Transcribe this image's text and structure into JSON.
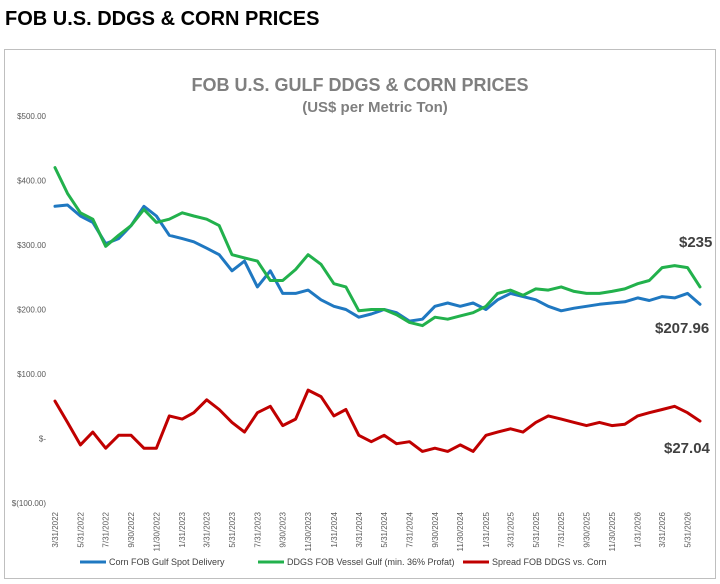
{
  "page_title": "FOB U.S. DDGS & CORN PRICES",
  "chart_data": {
    "type": "line",
    "title": "FOB U.S. GULF DDGS & CORN PRICES",
    "subtitle": "(US$ per Metric Ton)",
    "ylim": [
      -100,
      500
    ],
    "y_ticks": [
      "$500.00",
      "$400.00",
      "$300.00",
      "$200.00",
      "$100.00",
      "$-",
      "$(100.00)"
    ],
    "y_tick_values": [
      500,
      400,
      300,
      200,
      100,
      0,
      -100
    ],
    "x_tick_labels": [
      "3/31/2022",
      "5/31/2022",
      "7/31/2022",
      "9/30/2022",
      "11/30/2022",
      "1/31/2023",
      "3/31/2023",
      "5/31/2023",
      "7/31/2023",
      "9/30/2023",
      "11/30/2023",
      "1/31/2024",
      "3/31/2024",
      "5/31/2024",
      "7/31/2024",
      "9/30/2024",
      "11/30/2024",
      "1/31/2025",
      "3/31/2025",
      "5/31/2025",
      "7/31/2025",
      "9/30/2025",
      "11/30/2025",
      "1/31/2026",
      "3/31/2026",
      "5/31/2026"
    ],
    "grid": false,
    "legend_position": "bottom",
    "series": [
      {
        "name": "Corn FOB Gulf Spot  Delivery",
        "color": "#1f78c1",
        "x": [
          "3/31/2022",
          "4/30/2022",
          "5/31/2022",
          "6/30/2022",
          "7/31/2022",
          "8/31/2022",
          "9/30/2022",
          "10/31/2022",
          "11/30/2022",
          "12/31/2022",
          "1/31/2023",
          "2/28/2023",
          "3/31/2023",
          "4/30/2023",
          "5/31/2023",
          "6/30/2023",
          "7/31/2023",
          "8/31/2023",
          "9/30/2023",
          "10/31/2023",
          "11/30/2023",
          "12/31/2023",
          "1/31/2024",
          "2/29/2024",
          "3/31/2024",
          "4/30/2024",
          "5/31/2024",
          "6/30/2024",
          "7/31/2024",
          "8/31/2024",
          "9/30/2024",
          "10/31/2024",
          "11/30/2024",
          "12/31/2024",
          "1/31/2025",
          "2/28/2025",
          "3/31/2025",
          "4/30/2025",
          "5/31/2025",
          "6/30/2025",
          "7/31/2025",
          "8/31/2025",
          "9/30/2025",
          "10/31/2025",
          "11/30/2025",
          "12/31/2025",
          "1/31/2026",
          "2/28/2026",
          "3/31/2026",
          "4/30/2026",
          "5/31/2026",
          "6/30/2026"
        ],
        "values": [
          360,
          362,
          345,
          335,
          302,
          310,
          330,
          360,
          345,
          315,
          310,
          305,
          295,
          285,
          260,
          275,
          235,
          260,
          225,
          225,
          230,
          215,
          205,
          200,
          188,
          193,
          200,
          195,
          182,
          185,
          205,
          210,
          205,
          210,
          200,
          215,
          225,
          220,
          215,
          205,
          198,
          202,
          205,
          208,
          210,
          212,
          218,
          214,
          220,
          218,
          225,
          208
        ]
      },
      {
        "name": "DDGS FOB Vessel Gulf (min. 36% Profat)",
        "color": "#22b14c",
        "x": [
          "3/31/2022",
          "4/30/2022",
          "5/31/2022",
          "6/30/2022",
          "7/31/2022",
          "8/31/2022",
          "9/30/2022",
          "10/31/2022",
          "11/30/2022",
          "12/31/2022",
          "1/31/2023",
          "2/28/2023",
          "3/31/2023",
          "4/30/2023",
          "5/31/2023",
          "6/30/2023",
          "7/31/2023",
          "8/31/2023",
          "9/30/2023",
          "10/31/2023",
          "11/30/2023",
          "12/31/2023",
          "1/31/2024",
          "2/29/2024",
          "3/31/2024",
          "4/30/2024",
          "5/31/2024",
          "6/30/2024",
          "7/31/2024",
          "8/31/2024",
          "9/30/2024",
          "10/31/2024",
          "11/30/2024",
          "12/31/2024",
          "1/31/2025",
          "2/28/2025",
          "3/31/2025",
          "4/30/2025",
          "5/31/2025",
          "6/30/2025",
          "7/31/2025",
          "8/31/2025",
          "9/30/2025",
          "10/31/2025",
          "11/30/2025",
          "12/31/2025",
          "1/31/2026",
          "2/28/2026",
          "3/31/2026",
          "4/30/2026",
          "5/31/2026",
          "6/30/2026"
        ],
        "values": [
          420,
          380,
          350,
          340,
          298,
          315,
          330,
          355,
          335,
          340,
          350,
          345,
          340,
          330,
          285,
          280,
          275,
          245,
          245,
          262,
          285,
          270,
          240,
          235,
          198,
          200,
          200,
          192,
          180,
          175,
          188,
          185,
          190,
          195,
          205,
          225,
          230,
          222,
          232,
          230,
          235,
          228,
          225,
          225,
          228,
          232,
          240,
          245,
          265,
          268,
          265,
          235
        ]
      },
      {
        "name": "Spread FOB DDGS vs. Corn",
        "color": "#c00000",
        "x": [
          "3/31/2022",
          "4/30/2022",
          "5/31/2022",
          "6/30/2022",
          "7/31/2022",
          "8/31/2022",
          "9/30/2022",
          "10/31/2022",
          "11/30/2022",
          "12/31/2022",
          "1/31/2023",
          "2/28/2023",
          "3/31/2023",
          "4/30/2023",
          "5/31/2023",
          "6/30/2023",
          "7/31/2023",
          "8/31/2023",
          "9/30/2023",
          "10/31/2023",
          "11/30/2023",
          "12/31/2023",
          "1/31/2024",
          "2/29/2024",
          "3/31/2024",
          "4/30/2024",
          "5/31/2024",
          "6/30/2024",
          "7/31/2024",
          "8/31/2024",
          "9/30/2024",
          "10/31/2024",
          "11/30/2024",
          "12/31/2024",
          "1/31/2025",
          "2/28/2025",
          "3/31/2025",
          "4/30/2025",
          "5/31/2025",
          "6/30/2025",
          "7/31/2025",
          "8/31/2025",
          "9/30/2025",
          "10/31/2025",
          "11/30/2025",
          "12/31/2025",
          "1/31/2026",
          "2/28/2026",
          "3/31/2026",
          "4/30/2026",
          "5/31/2026",
          "6/30/2026"
        ],
        "values": [
          58,
          25,
          -10,
          10,
          -15,
          5,
          5,
          -15,
          -15,
          35,
          30,
          40,
          60,
          45,
          25,
          10,
          40,
          50,
          20,
          30,
          75,
          65,
          35,
          45,
          5,
          -5,
          5,
          -8,
          -5,
          -20,
          -15,
          -20,
          -10,
          -20,
          5,
          10,
          15,
          10,
          25,
          35,
          30,
          25,
          20,
          25,
          20,
          22,
          35,
          40,
          45,
          50,
          40,
          27
        ]
      }
    ],
    "end_labels": [
      "$235",
      "$207.96",
      "$27.04"
    ]
  }
}
